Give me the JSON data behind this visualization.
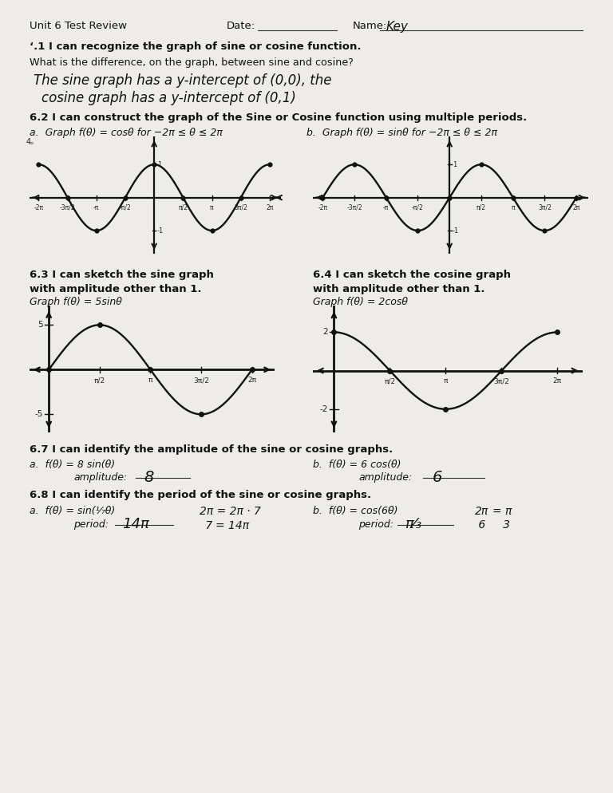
{
  "bg_color": "#eeece8",
  "line_color": "#222222",
  "curve_color": "#1a1a1a",
  "header": "Unit 6 Test Review",
  "date_label": "Date:",
  "name_label": "Name:",
  "name_value": "Key",
  "s1_title": "‘.1 I can recognize the graph of sine or cosine function.",
  "s1_q": "What is the difference, on the graph, between sine and cosine?",
  "s1_a1": "The sine graph has a y-intercept of (0,0), the",
  "s1_a2": "cosine graph has a y-intercept of (0,1)",
  "s2_title": "6.2 I can construct the graph of the Sine or Cosine function using multiple periods.",
  "s2a": "a.  Graph f(θ) = cosθ for −2π ≤ θ ≤ 2π",
  "s2b": "b.  Graph f(θ) = sinθ for −2π ≤ θ ≤ 2π",
  "s3_title": "6.3 I can sketch the sine graph",
  "s3_sub": "with amplitude other than 1.",
  "s3_label": "Graph f(θ) = 5sinθ",
  "s4_title": "6.4 I can sketch the cosine graph",
  "s4_sub": "with amplitude other than 1.",
  "s4_label": "Graph f(θ) = 2cosθ",
  "s5_title": "6.7 I can identify the amplitude of the sine or cosine graphs.",
  "s5a": "a.  f(θ) = 8 sin(θ)",
  "s5a_lbl": "amplitude:",
  "s5a_ans": "8",
  "s5b": "b.  f(θ) = 6 cos(θ)",
  "s5b_lbl": "amplitude:",
  "s5b_ans": "6",
  "s6_title": "6.8 I can identify the period of the sine or cosine graphs.",
  "s6a_eq": "a.  f(θ) = sin(¹⁄₇θ)",
  "s6a_lbl": "period:",
  "s6a_ans": "14π",
  "s6a_w1": "2π = 2π · 7",
  "s6a_w2": " 7",
  "s6a_w3": "= 14π",
  "s6b_eq": "b.  f(θ) = cos(6θ)",
  "s6b_lbl": "period:",
  "s6b_ans": "π⁄₃",
  "s6b_w1": "2π",
  "s6b_w2": " 6",
  "s6b_w3": "= π",
  "s6b_w4": "   3"
}
